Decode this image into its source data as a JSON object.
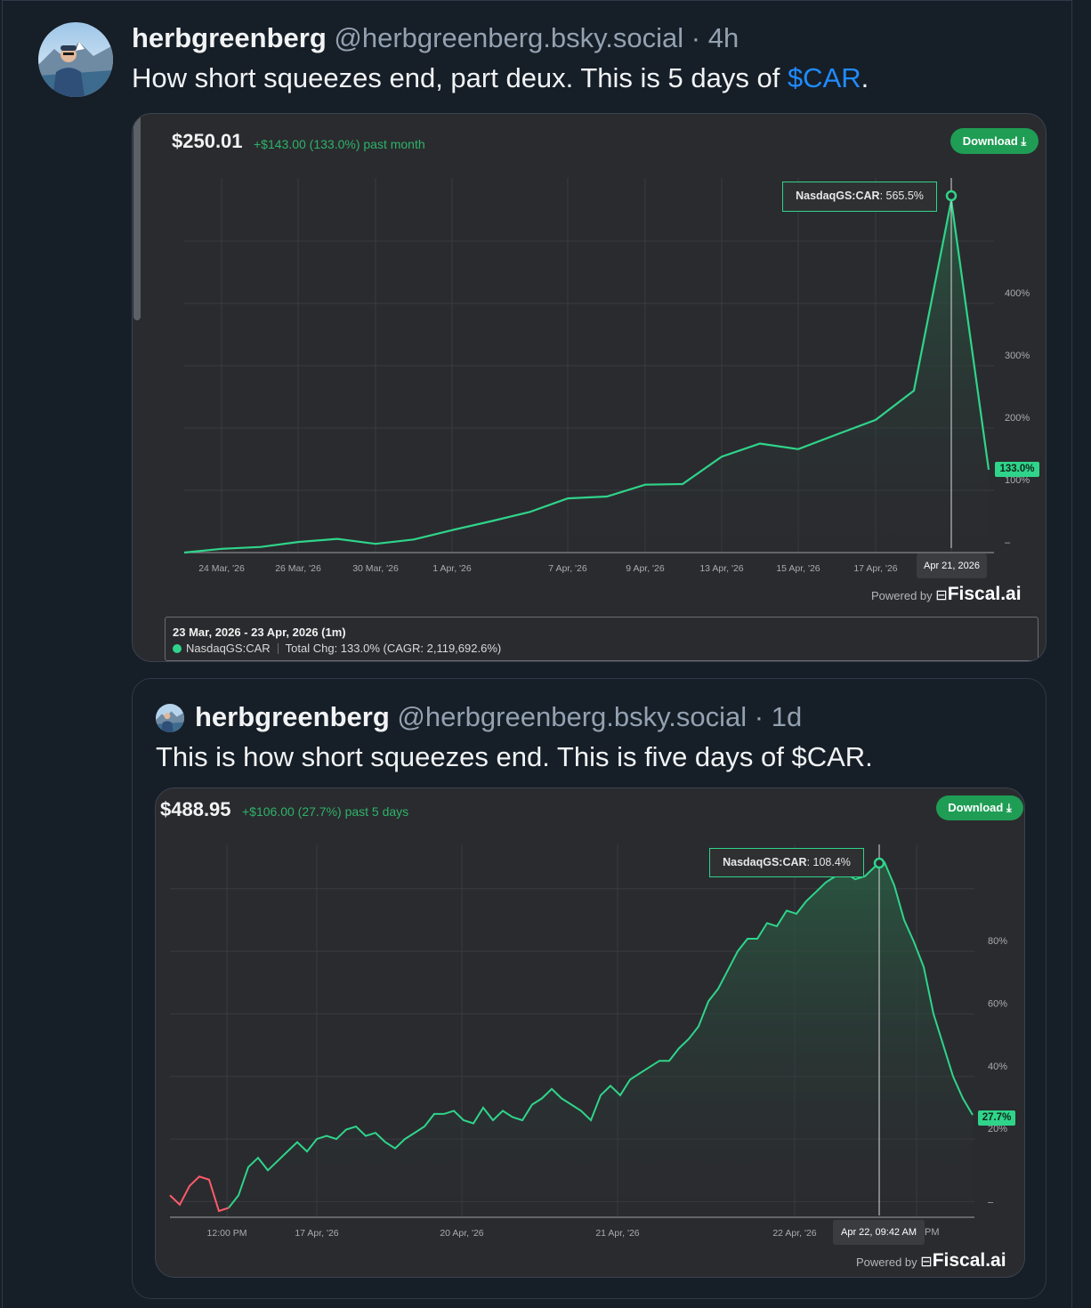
{
  "post": {
    "author": "herbgreenberg",
    "handle": "@herbgreenberg.bsky.social",
    "time": " · 4h",
    "text_before": "How short squeezes end, part deux. This is 5 days of ",
    "cashtag": "$CAR",
    "text_after": "."
  },
  "chart1": {
    "price": "$250.01",
    "change": "+$143.00 (133.0%) past month",
    "download_label": "Download",
    "tooltip_symbol": "NasdaqGS:CAR",
    "tooltip_value": ": 565.5%",
    "cursor_date": "Apr 21, 2026",
    "last_value_label": "133.0%",
    "powered_by": "Powered by",
    "brand": "Fiscal.ai",
    "legend_range": "23 Mar, 2026 - 23 Apr, 2026 (1m)",
    "legend_symbol": "NasdaqGS:CAR",
    "legend_total": "Total Chg: 133.0% (CAGR: 2,119,692.6%)",
    "colors": {
      "line": "#2fd48a",
      "fill_top": "#2a5d44",
      "grid": "#3a3b40",
      "button": "#1f9d55"
    }
  },
  "quote": {
    "author": "herbgreenberg",
    "handle": "@herbgreenberg.bsky.social",
    "time": " · 1d",
    "text": "This is how short squeezes end. This is five days of $CAR."
  },
  "chart2": {
    "price": "$488.95",
    "change": "+$106.00 (27.7%) past 5 days",
    "download_label": "Download",
    "tooltip_symbol": "NasdaqGS:CAR",
    "tooltip_value": ": 108.4%",
    "cursor_date": "Apr 22, 09:42 AM",
    "cursor_tail": "PM",
    "last_value_label": "27.7%",
    "powered_by": "Powered by",
    "brand": "Fiscal.ai",
    "colors": {
      "line": "#2fd48a",
      "neg": "#ff5b6a",
      "fill_top": "#2a5d44",
      "grid": "#3a3b40",
      "button": "#1f9d55"
    }
  },
  "chart_data": [
    {
      "type": "area",
      "title": "",
      "xlabel": "",
      "ylabel": "",
      "series": [
        {
          "name": "NasdaqGS:CAR",
          "x": [
            "23 Mar",
            "24 Mar",
            "25 Mar",
            "26 Mar",
            "27 Mar",
            "30 Mar",
            "31 Mar",
            "1 Apr",
            "2 Apr",
            "6 Apr",
            "7 Apr",
            "8 Apr",
            "9 Apr",
            "10 Apr",
            "13 Apr",
            "14 Apr",
            "15 Apr",
            "16 Apr",
            "17 Apr",
            "20 Apr",
            "21 Apr",
            "22 Apr"
          ],
          "values": [
            0,
            6,
            9,
            17,
            22,
            14,
            21,
            36,
            50,
            65,
            87,
            90,
            109,
            110,
            154,
            175,
            166,
            190,
            213,
            260,
            565.5,
            133
          ]
        }
      ],
      "x_ticks": [
        "24 Mar, '26",
        "26 Mar, '26",
        "30 Mar, '26",
        "1 Apr, '26",
        "7 Apr, '26",
        "9 Apr, '26",
        "13 Apr, '26",
        "15 Apr, '26",
        "17 Apr, '26"
      ],
      "y_ticks": [
        "–",
        "100%",
        "200%",
        "300%",
        "400%"
      ],
      "ylim": [
        0,
        590
      ],
      "grid": true,
      "legend": "bottom"
    },
    {
      "type": "area",
      "title": "",
      "xlabel": "",
      "ylabel": "",
      "series": [
        {
          "name": "NasdaqGS:CAR",
          "values": [
            2,
            -1,
            5,
            8,
            7,
            -3,
            -2,
            2,
            11,
            14,
            10,
            13,
            16,
            19,
            16,
            20,
            21,
            20,
            23,
            24,
            21,
            22,
            19,
            17,
            20,
            22,
            24,
            28,
            28,
            29,
            26,
            25,
            30,
            26,
            29,
            27,
            26,
            31,
            33,
            36,
            33,
            31,
            29,
            26,
            34,
            37,
            34,
            39,
            41,
            43,
            45,
            45,
            49,
            52,
            56,
            64,
            68,
            74,
            80,
            84,
            84,
            89,
            88,
            93,
            92,
            96,
            99,
            102,
            104,
            105,
            103,
            104,
            107,
            108.4,
            101,
            90,
            83,
            75,
            60,
            50,
            40,
            33,
            27.7
          ],
          "neg_segment": [
            0,
            6
          ]
        }
      ],
      "x_ticks": [
        "12:00 PM",
        "17 Apr, '26",
        "20 Apr, '26",
        "21 Apr, '26",
        "22 Apr, '26"
      ],
      "y_ticks": [
        "–",
        "20%",
        "40%",
        "60%",
        "80%"
      ],
      "ylim": [
        -5,
        115
      ],
      "grid": true
    }
  ]
}
